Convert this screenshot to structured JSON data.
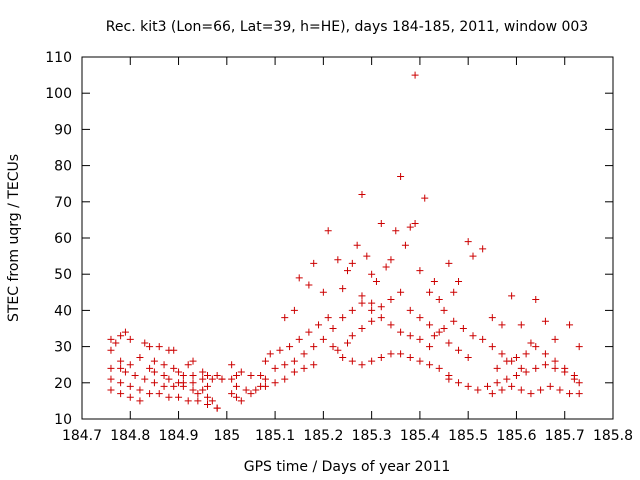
{
  "chart_data": {
    "type": "scatter",
    "title": "Rec. kit3 (Lon=66, Lat=39, h=HE), days 184-185, 2011, window 003",
    "xlabel": "GPS time / Days of year 2011",
    "ylabel": "STEC from uqrg / TECUs",
    "xlim": [
      184.7,
      185.8
    ],
    "ylim": [
      10,
      110
    ],
    "xticks": [
      184.7,
      184.8,
      184.9,
      185,
      185.1,
      185.2,
      185.3,
      185.4,
      185.5,
      185.6,
      185.7,
      185.8
    ],
    "xtick_labels": [
      "184.7",
      "184.8",
      "184.9",
      "185",
      "185.1",
      "185.2",
      "185.3",
      "185.4",
      "185.5",
      "185.6",
      "185.7",
      "185.8"
    ],
    "yticks": [
      10,
      20,
      30,
      40,
      50,
      60,
      70,
      80,
      90,
      100,
      110
    ],
    "ytick_labels": [
      "10",
      "20",
      "30",
      "40",
      "50",
      "60",
      "70",
      "80",
      "90",
      "100",
      "110"
    ],
    "marker": "+",
    "color": "#cc0000",
    "grid": false,
    "series": [
      {
        "name": "STEC",
        "points": [
          [
            184.76,
            32
          ],
          [
            184.77,
            31
          ],
          [
            184.78,
            33
          ],
          [
            184.79,
            34
          ],
          [
            184.8,
            32
          ],
          [
            184.76,
            29
          ],
          [
            184.78,
            26
          ],
          [
            184.8,
            25
          ],
          [
            184.82,
            27
          ],
          [
            184.76,
            24
          ],
          [
            184.78,
            24
          ],
          [
            184.79,
            23
          ],
          [
            184.81,
            22
          ],
          [
            184.83,
            21
          ],
          [
            184.85,
            20
          ],
          [
            184.87,
            19
          ],
          [
            184.89,
            19
          ],
          [
            184.91,
            20
          ],
          [
            184.93,
            20
          ],
          [
            184.95,
            21
          ],
          [
            184.97,
            21
          ],
          [
            184.99,
            21
          ],
          [
            184.76,
            21
          ],
          [
            184.78,
            20
          ],
          [
            184.8,
            19
          ],
          [
            184.82,
            18
          ],
          [
            184.84,
            17
          ],
          [
            184.86,
            17
          ],
          [
            184.88,
            16
          ],
          [
            184.9,
            16
          ],
          [
            184.92,
            15
          ],
          [
            184.94,
            15
          ],
          [
            184.96,
            14
          ],
          [
            184.98,
            13
          ],
          [
            184.76,
            18
          ],
          [
            184.78,
            17
          ],
          [
            184.8,
            16
          ],
          [
            184.82,
            15
          ],
          [
            184.83,
            31
          ],
          [
            184.84,
            30
          ],
          [
            184.86,
            30
          ],
          [
            184.88,
            29
          ],
          [
            184.89,
            29
          ],
          [
            184.85,
            26
          ],
          [
            184.87,
            25
          ],
          [
            184.89,
            24
          ],
          [
            184.9,
            23
          ],
          [
            184.92,
            25
          ],
          [
            184.93,
            26
          ],
          [
            184.84,
            24
          ],
          [
            184.85,
            23
          ],
          [
            184.87,
            22
          ],
          [
            184.88,
            21
          ],
          [
            184.9,
            20
          ],
          [
            184.91,
            19
          ],
          [
            184.93,
            18
          ],
          [
            184.94,
            17
          ],
          [
            184.96,
            16
          ],
          [
            184.97,
            15
          ],
          [
            184.98,
            13
          ],
          [
            184.91,
            22
          ],
          [
            184.93,
            22
          ],
          [
            184.95,
            23
          ],
          [
            184.96,
            22
          ],
          [
            184.98,
            22
          ],
          [
            184.99,
            21
          ],
          [
            184.95,
            18
          ],
          [
            184.96,
            19
          ],
          [
            185.01,
            25
          ],
          [
            185.02,
            22
          ],
          [
            185.03,
            23
          ],
          [
            185.05,
            22
          ],
          [
            185.07,
            22
          ],
          [
            185.08,
            21
          ],
          [
            185.01,
            21
          ],
          [
            185.02,
            19
          ],
          [
            185.04,
            18
          ],
          [
            185.06,
            18
          ],
          [
            185.08,
            19
          ],
          [
            185.1,
            20
          ],
          [
            185.12,
            21
          ],
          [
            185.14,
            23
          ],
          [
            185.16,
            24
          ],
          [
            185.18,
            25
          ],
          [
            185.01,
            17
          ],
          [
            185.02,
            16
          ],
          [
            185.03,
            15
          ],
          [
            185.05,
            17
          ],
          [
            185.07,
            19
          ],
          [
            185.08,
            26
          ],
          [
            185.09,
            28
          ],
          [
            185.11,
            29
          ],
          [
            185.13,
            30
          ],
          [
            185.15,
            32
          ],
          [
            185.17,
            34
          ],
          [
            185.19,
            36
          ],
          [
            185.21,
            38
          ],
          [
            185.1,
            24
          ],
          [
            185.12,
            25
          ],
          [
            185.14,
            26
          ],
          [
            185.16,
            28
          ],
          [
            185.18,
            30
          ],
          [
            185.2,
            32
          ],
          [
            185.22,
            35
          ],
          [
            185.24,
            38
          ],
          [
            185.26,
            40
          ],
          [
            185.28,
            42
          ],
          [
            185.3,
            40
          ],
          [
            185.12,
            38
          ],
          [
            185.14,
            40
          ],
          [
            185.15,
            49
          ],
          [
            185.17,
            47
          ],
          [
            185.18,
            53
          ],
          [
            185.2,
            45
          ],
          [
            185.21,
            62
          ],
          [
            185.23,
            54
          ],
          [
            185.24,
            46
          ],
          [
            185.25,
            51
          ],
          [
            185.26,
            53
          ],
          [
            185.27,
            58
          ],
          [
            185.28,
            72
          ],
          [
            185.29,
            55
          ],
          [
            185.3,
            50
          ],
          [
            185.31,
            48
          ],
          [
            185.32,
            64
          ],
          [
            185.33,
            52
          ],
          [
            185.34,
            54
          ],
          [
            185.35,
            62
          ],
          [
            185.36,
            77
          ],
          [
            185.37,
            58
          ],
          [
            185.38,
            63
          ],
          [
            185.39,
            64
          ],
          [
            185.39,
            105
          ],
          [
            185.4,
            51
          ],
          [
            185.41,
            71
          ],
          [
            185.42,
            45
          ],
          [
            185.43,
            48
          ],
          [
            185.44,
            43
          ],
          [
            185.45,
            40
          ],
          [
            185.46,
            53
          ],
          [
            185.47,
            45
          ],
          [
            185.48,
            48
          ],
          [
            185.5,
            59
          ],
          [
            185.51,
            55
          ],
          [
            185.22,
            30
          ],
          [
            185.23,
            29
          ],
          [
            185.25,
            31
          ],
          [
            185.26,
            33
          ],
          [
            185.28,
            35
          ],
          [
            185.3,
            37
          ],
          [
            185.32,
            38
          ],
          [
            185.34,
            36
          ],
          [
            185.36,
            34
          ],
          [
            185.38,
            33
          ],
          [
            185.4,
            32
          ],
          [
            185.42,
            30
          ],
          [
            185.24,
            27
          ],
          [
            185.26,
            26
          ],
          [
            185.28,
            25
          ],
          [
            185.3,
            26
          ],
          [
            185.32,
            27
          ],
          [
            185.34,
            28
          ],
          [
            185.36,
            28
          ],
          [
            185.38,
            27
          ],
          [
            185.4,
            26
          ],
          [
            185.42,
            25
          ],
          [
            185.44,
            24
          ],
          [
            185.46,
            22
          ],
          [
            185.28,
            44
          ],
          [
            185.3,
            42
          ],
          [
            185.32,
            41
          ],
          [
            185.34,
            43
          ],
          [
            185.36,
            45
          ],
          [
            185.38,
            40
          ],
          [
            185.4,
            38
          ],
          [
            185.42,
            36
          ],
          [
            185.44,
            34
          ],
          [
            185.46,
            31
          ],
          [
            185.48,
            29
          ],
          [
            185.5,
            27
          ],
          [
            185.43,
            33
          ],
          [
            185.45,
            35
          ],
          [
            185.47,
            37
          ],
          [
            185.49,
            35
          ],
          [
            185.51,
            33
          ],
          [
            185.53,
            32
          ],
          [
            185.55,
            30
          ],
          [
            185.57,
            28
          ],
          [
            185.59,
            26
          ],
          [
            185.61,
            24
          ],
          [
            185.46,
            21
          ],
          [
            185.48,
            20
          ],
          [
            185.5,
            19
          ],
          [
            185.52,
            18
          ],
          [
            185.54,
            19
          ],
          [
            185.56,
            20
          ],
          [
            185.58,
            21
          ],
          [
            185.6,
            22
          ],
          [
            185.62,
            23
          ],
          [
            185.64,
            24
          ],
          [
            185.66,
            25
          ],
          [
            185.68,
            24
          ],
          [
            185.7,
            23
          ],
          [
            185.72,
            21
          ],
          [
            185.53,
            57
          ],
          [
            185.55,
            38
          ],
          [
            185.57,
            36
          ],
          [
            185.59,
            44
          ],
          [
            185.61,
            36
          ],
          [
            185.63,
            31
          ],
          [
            185.64,
            43
          ],
          [
            185.66,
            37
          ],
          [
            185.68,
            32
          ],
          [
            185.71,
            36
          ],
          [
            185.73,
            30
          ],
          [
            185.55,
            17
          ],
          [
            185.57,
            18
          ],
          [
            185.59,
            19
          ],
          [
            185.61,
            18
          ],
          [
            185.63,
            17
          ],
          [
            185.65,
            18
          ],
          [
            185.67,
            19
          ],
          [
            185.69,
            18
          ],
          [
            185.71,
            17
          ],
          [
            185.73,
            17
          ],
          [
            185.56,
            24
          ],
          [
            185.58,
            26
          ],
          [
            185.6,
            27
          ],
          [
            185.62,
            28
          ],
          [
            185.64,
            30
          ],
          [
            185.66,
            28
          ],
          [
            185.68,
            26
          ],
          [
            185.7,
            24
          ],
          [
            185.72,
            22
          ],
          [
            185.73,
            20
          ]
        ]
      }
    ]
  }
}
